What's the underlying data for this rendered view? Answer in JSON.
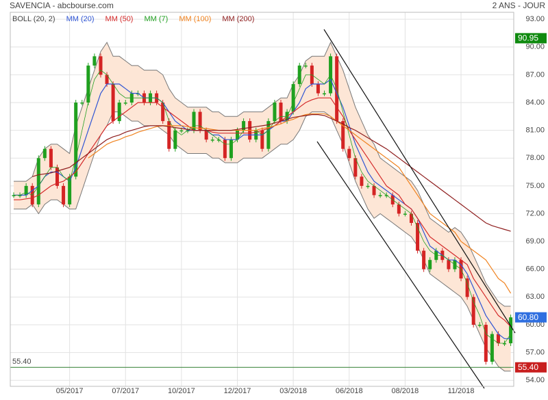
{
  "chart_data": {
    "type": "candlestick",
    "title": "SAVENCIA - abcbourse.com",
    "period": "2 ANS - JOUR",
    "categories": [
      null,
      null,
      null,
      null,
      null,
      null,
      null,
      null,
      null,
      "05/2017",
      null,
      null,
      null,
      null,
      null,
      null,
      null,
      null,
      "07/2017",
      null,
      null,
      null,
      null,
      null,
      null,
      null,
      null,
      "10/2017",
      null,
      null,
      null,
      null,
      null,
      null,
      null,
      null,
      "12/2017",
      null,
      null,
      null,
      null,
      null,
      null,
      null,
      null,
      "03/2018",
      null,
      null,
      null,
      null,
      null,
      null,
      null,
      null,
      "06/2018",
      null,
      null,
      null,
      null,
      null,
      null,
      null,
      null,
      "08/2018",
      null,
      null,
      null,
      null,
      null,
      null,
      null,
      null,
      "11/2018",
      null,
      null,
      null,
      null,
      null,
      null,
      null,
      null
    ],
    "values": [
      74,
      74,
      75,
      73,
      78,
      79,
      77,
      75,
      73,
      76,
      84,
      84,
      88,
      89,
      87,
      86,
      82,
      84,
      84,
      85,
      85,
      84,
      85,
      84,
      82,
      79,
      81,
      81,
      81,
      83,
      81,
      80,
      80,
      80,
      78,
      80,
      81,
      82,
      80,
      81,
      79,
      82,
      84,
      82,
      83,
      86,
      88,
      88,
      86,
      85,
      85,
      89,
      82,
      79,
      78,
      76,
      75,
      75,
      74,
      74,
      74,
      73,
      72,
      72,
      71,
      68,
      66,
      67,
      68,
      67,
      66,
      67,
      65,
      63,
      60,
      60,
      56,
      59,
      58,
      58,
      60.8
    ],
    "up_color": "#1fa01f",
    "down_color": "#d42424",
    "bollinger": {
      "name": "BOLL (20, 2)",
      "fill": "#fde6d6",
      "color": "#777777",
      "upper": [
        75.5,
        75.5,
        75.5,
        76,
        78,
        79,
        79.5,
        79.5,
        79,
        78.5,
        81.5,
        83.5,
        85.5,
        87.5,
        89.5,
        90.5,
        89,
        89,
        88.5,
        88,
        88,
        87.5,
        87.5,
        87.5,
        87,
        85.5,
        84.5,
        84,
        83.5,
        83.5,
        83.5,
        83.5,
        83,
        83,
        82.5,
        82.5,
        82.5,
        83,
        83,
        83,
        83,
        83.5,
        84,
        84.5,
        84.5,
        86,
        87,
        88.5,
        89,
        89,
        89,
        90.5,
        89,
        87.5,
        85.5,
        83.5,
        82,
        80.5,
        79.5,
        78,
        77.5,
        77,
        76.5,
        76,
        75.5,
        74.5,
        73,
        71.5,
        71,
        70.5,
        70,
        70.5,
        70,
        69,
        67.5,
        66,
        64.5,
        63.5,
        62.5,
        62,
        62
      ],
      "lower": [
        72.5,
        72.5,
        72.5,
        73,
        72,
        73,
        73.5,
        73.5,
        73,
        72.5,
        72.5,
        74.5,
        76.5,
        78.5,
        80.5,
        81.5,
        83,
        83,
        82.5,
        82,
        82,
        81.5,
        81.5,
        81.5,
        81,
        80.5,
        79.5,
        79,
        78.5,
        78.5,
        78.5,
        78.5,
        78,
        78,
        77.5,
        77.5,
        77.5,
        78,
        78,
        78,
        78,
        78.5,
        79,
        79.5,
        79.5,
        80,
        81,
        82.5,
        83,
        83,
        83,
        82.5,
        81,
        79.5,
        77.5,
        75.5,
        74,
        72.5,
        71.5,
        72,
        71.5,
        71,
        70.5,
        70,
        69.5,
        68.5,
        67,
        65.5,
        65,
        64.5,
        64,
        63.5,
        63,
        62,
        60.5,
        59,
        57.5,
        56.5,
        55.5,
        55,
        55
      ]
    },
    "series": [
      {
        "name": "MM (20)",
        "color": "#2f55d4",
        "values": [
          74,
          74,
          74,
          74.5,
          75,
          76,
          76.5,
          76.5,
          76,
          75.5,
          77,
          79,
          81,
          83,
          85,
          86,
          86,
          86,
          85.5,
          85,
          85,
          84.5,
          84.5,
          84.5,
          84,
          83,
          82,
          81.5,
          81,
          81,
          81,
          81,
          80.5,
          80.5,
          80,
          80,
          80,
          80.5,
          80.5,
          80.5,
          80.5,
          81,
          81.5,
          82,
          82,
          83,
          84,
          85.5,
          86,
          86,
          86,
          86.5,
          85,
          83.5,
          81.5,
          79.5,
          78,
          76.5,
          75.5,
          75,
          74.5,
          74,
          73.5,
          73,
          72.5,
          71.5,
          70,
          68.5,
          68,
          67.5,
          67,
          67,
          66.5,
          65.5,
          64,
          62.5,
          61,
          60,
          59,
          58.5,
          58.5
        ]
      },
      {
        "name": "MM (50)",
        "color": "#d42a2a",
        "values": [
          73.5,
          73.5,
          73.6,
          73.7,
          74,
          74.5,
          75,
          75.3,
          75.5,
          76,
          76.5,
          77.5,
          78.5,
          79.5,
          80.5,
          81.5,
          82,
          82.5,
          83,
          83.5,
          84,
          84,
          84,
          84,
          83.5,
          83,
          82.5,
          82,
          81.5,
          81,
          81,
          81,
          80.8,
          80.7,
          80.7,
          80.7,
          80.7,
          80.7,
          80.7,
          80.8,
          81,
          81.2,
          81.5,
          82,
          82.5,
          83,
          83.5,
          84,
          84.3,
          84.5,
          84.5,
          84.5,
          83.5,
          82.5,
          81,
          80,
          79,
          78,
          77,
          76,
          75,
          74.5,
          74,
          73,
          72.5,
          71.5,
          70.5,
          69.5,
          69,
          68.5,
          68,
          67.5,
          67,
          66.5,
          65,
          64,
          63,
          62,
          61,
          60.5,
          59.8
        ]
      },
      {
        "name": "MM (7)",
        "color": "#22a022",
        "values": [
          74,
          74,
          74.3,
          74,
          75,
          76,
          77,
          77,
          76,
          75.5,
          78,
          81,
          84,
          86.5,
          87.5,
          87,
          86,
          85,
          84.5,
          84.5,
          84.5,
          84.5,
          84.5,
          84.5,
          84,
          82,
          81,
          80.5,
          81,
          81.5,
          81.5,
          81,
          80.5,
          80,
          79.5,
          79.5,
          80,
          81,
          81,
          81,
          80.5,
          81,
          82,
          82.5,
          82.5,
          84,
          85.5,
          87,
          87,
          86.5,
          86,
          87,
          85.5,
          83,
          80.5,
          78,
          76.5,
          75.5,
          75,
          74.5,
          74,
          73.5,
          73,
          72.5,
          72,
          70.5,
          69,
          68,
          67.5,
          67.5,
          67,
          66.5,
          66,
          64.5,
          62.5,
          61,
          59,
          58.5,
          58,
          58,
          59
        ]
      },
      {
        "name": "MM (100)",
        "color": "#f0821e",
        "values": [
          null,
          null,
          null,
          null,
          null,
          null,
          null,
          null,
          null,
          null,
          null,
          null,
          78,
          78.5,
          79,
          79.5,
          79.8,
          80,
          80.3,
          80.5,
          80.8,
          81,
          81.2,
          81.4,
          81.5,
          81.5,
          81.5,
          81.5,
          81.4,
          81.3,
          81.2,
          81.2,
          81.1,
          81,
          81,
          81,
          81,
          81,
          81,
          81,
          81.2,
          81.3,
          81.5,
          81.7,
          82,
          82.2,
          82.5,
          82.7,
          82.8,
          82.8,
          82.8,
          82.5,
          82,
          81.5,
          81,
          80.5,
          80,
          79.5,
          79,
          78.5,
          78,
          77.5,
          77,
          76,
          75,
          74,
          73,
          72,
          71.5,
          71,
          70.5,
          70,
          69,
          68.5,
          68,
          67.5,
          67,
          66,
          65,
          64.5,
          63.4
        ]
      },
      {
        "name": "MM (200)",
        "color": "#8e1c1c",
        "values": [
          null,
          null,
          null,
          76,
          76.2,
          76.3,
          76.4,
          76.6,
          76.8,
          77,
          77.5,
          78,
          78.5,
          79,
          79.5,
          80,
          80.3,
          80.5,
          80.8,
          81,
          81.2,
          81.4,
          81.5,
          81.5,
          81.5,
          81.4,
          81.3,
          81.2,
          81.1,
          81,
          81,
          81,
          81,
          81,
          81,
          81,
          81.1,
          81.2,
          81.3,
          81.4,
          81.5,
          81.6,
          81.8,
          82,
          82.2,
          82.4,
          82.5,
          82.6,
          82.7,
          82.7,
          82.6,
          82.3,
          82,
          81.7,
          81.3,
          81,
          80.6,
          80.2,
          79.8,
          79.4,
          79,
          78.5,
          78,
          77.5,
          77,
          76.5,
          76,
          75.5,
          75,
          74.5,
          74,
          73.5,
          73,
          72.5,
          72,
          71.5,
          71,
          70.7,
          70.5,
          70.3,
          70.1
        ]
      }
    ],
    "ylim": [
      53.35,
      93.75
    ],
    "yticks": [
      {
        "value": 54,
        "label": "54.00"
      },
      {
        "value": 57,
        "label": "57.00"
      },
      {
        "value": 60,
        "label": "60.00"
      },
      {
        "value": 63,
        "label": "63.00"
      },
      {
        "value": 66,
        "label": "66.00"
      },
      {
        "value": 69,
        "label": "69.00"
      },
      {
        "value": 72,
        "label": "72.00"
      },
      {
        "value": 75,
        "label": "75.00"
      },
      {
        "value": 78,
        "label": "78.00"
      },
      {
        "value": 81,
        "label": "81.00"
      },
      {
        "value": 84,
        "label": "84.00"
      },
      {
        "value": 87,
        "label": "87.00"
      },
      {
        "value": 90,
        "label": "90.00"
      },
      {
        "value": 93,
        "label": "93.00"
      }
    ],
    "grid": true,
    "support_line": {
      "value": 55.4,
      "label": "55.40",
      "color": "#2f7d2f"
    },
    "price_tags": [
      {
        "value": 90.95,
        "label": "90.95",
        "color": "#0f8a0f"
      },
      {
        "value": 60.8,
        "label": "60.80",
        "color": "#2f6fe0"
      },
      {
        "value": 55.4,
        "label": "55.40",
        "color": "#c81e1e"
      }
    ]
  }
}
